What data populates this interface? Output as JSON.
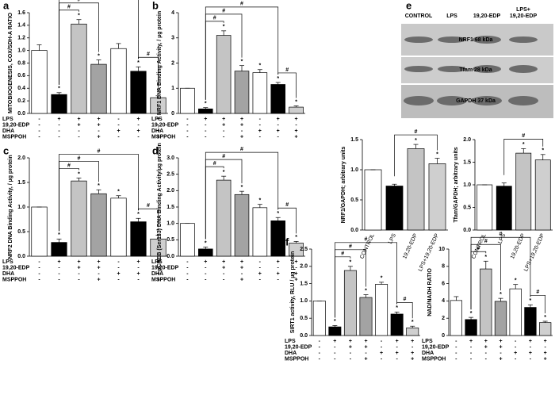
{
  "chart_data": [
    {
      "type": "bar",
      "panel": "a",
      "y_label": "MITOBIOGENESIS, COX/SDH-A RATIO",
      "values": [
        1.0,
        0.3,
        1.42,
        0.78,
        1.03,
        0.67,
        0.25
      ],
      "errors": [
        0.09,
        0.03,
        0.07,
        0.07,
        0.08,
        0.07,
        0.03
      ],
      "colors": [
        "#ffffff",
        "#000000",
        "#c4c4c4",
        "#a3a3a3",
        "#ffffff",
        "#000000",
        "#cfcfcf"
      ],
      "stars": [
        null,
        "*",
        "*",
        "*",
        null,
        "*",
        "*"
      ],
      "brackets": [
        {
          "from": 1,
          "to": 2,
          "text": "#"
        },
        {
          "from": 1,
          "to": 3,
          "text": "#"
        },
        {
          "from": 1,
          "to": 5,
          "text": "#"
        },
        {
          "from": 5,
          "to": 6,
          "text": "#"
        }
      ],
      "ylim": [
        0,
        1.6
      ],
      "yticks": [
        {
          "value": 0,
          "label": "0.0"
        },
        {
          "value": 0.2,
          "label": "0.2"
        },
        {
          "value": 0.4,
          "label": "0.4"
        },
        {
          "value": 0.6,
          "label": "0.6"
        },
        {
          "value": 0.8,
          "label": "0.8"
        },
        {
          "value": 1,
          "label": "1.0"
        },
        {
          "value": 1.2,
          "label": "1.2"
        },
        {
          "value": 1.4,
          "label": "1.4"
        },
        {
          "value": 1.6,
          "label": "1.6"
        }
      ],
      "treatments": [
        {
          "name": "LPS",
          "signs": [
            "-",
            "+",
            "+",
            "+",
            "-",
            "+",
            "+"
          ]
        },
        {
          "name": "19,20-EDP",
          "signs": [
            "-",
            "-",
            "+",
            "+",
            "-",
            "-",
            "-"
          ]
        },
        {
          "name": "DHA",
          "signs": [
            "-",
            "-",
            "-",
            "-",
            "+",
            "+",
            "+"
          ]
        },
        {
          "name": "MSPPOH",
          "signs": [
            "-",
            "-",
            "-",
            "+",
            "-",
            "-",
            "+"
          ]
        }
      ]
    },
    {
      "type": "bar",
      "panel": "b",
      "y_label": "NRF1 DNA Binding Activity, / µg protein",
      "values": [
        1.0,
        0.18,
        3.1,
        1.68,
        1.62,
        1.15,
        0.25
      ],
      "errors": [
        0,
        0.05,
        0.18,
        0.22,
        0.12,
        0.08,
        0.05
      ],
      "colors": [
        "#ffffff",
        "#000000",
        "#c4c4c4",
        "#a3a3a3",
        "#ffffff",
        "#000000",
        "#cfcfcf"
      ],
      "stars": [
        null,
        "*",
        "*",
        "*",
        "*",
        "*",
        "*"
      ],
      "brackets": [
        {
          "from": 1,
          "to": 2,
          "text": "#"
        },
        {
          "from": 1,
          "to": 3,
          "text": "#"
        },
        {
          "from": 1,
          "to": 5,
          "text": "#"
        },
        {
          "from": 5,
          "to": 6,
          "text": "#"
        }
      ],
      "ylim": [
        0,
        4
      ],
      "yticks": [
        0,
        1,
        2,
        3,
        4
      ],
      "treatments": [
        {
          "name": "LPS",
          "signs": [
            "-",
            "+",
            "+",
            "+",
            "-",
            "+",
            "+"
          ]
        },
        {
          "name": "19,20-EDP",
          "signs": [
            "-",
            "-",
            "+",
            "+",
            "-",
            "-",
            "-"
          ]
        },
        {
          "name": "DHA",
          "signs": [
            "-",
            "-",
            "-",
            "-",
            "+",
            "+",
            "+"
          ]
        },
        {
          "name": "MSPPOH",
          "signs": [
            "-",
            "-",
            "-",
            "+",
            "-",
            "-",
            "+"
          ]
        }
      ]
    },
    {
      "type": "bar",
      "panel": "c",
      "y_label": "NRF2 DNA Binding Activity, / µg protein",
      "values": [
        1.0,
        0.28,
        1.53,
        1.27,
        1.18,
        0.7,
        0.35
      ],
      "errors": [
        0,
        0.07,
        0.06,
        0.08,
        0.05,
        0.07,
        0.08
      ],
      "colors": [
        "#ffffff",
        "#000000",
        "#c4c4c4",
        "#a3a3a3",
        "#ffffff",
        "#000000",
        "#cfcfcf"
      ],
      "stars": [
        null,
        "*",
        "*",
        "*",
        "*",
        "*",
        "*"
      ],
      "brackets": [
        {
          "from": 1,
          "to": 2,
          "text": "#"
        },
        {
          "from": 1,
          "to": 3,
          "text": "#"
        },
        {
          "from": 1,
          "to": 5,
          "text": "#"
        },
        {
          "from": 5,
          "to": 6,
          "text": "#"
        }
      ],
      "ylim": [
        0,
        2
      ],
      "yticks": [
        {
          "value": 0,
          "label": "0.0"
        },
        {
          "value": 0.5,
          "label": "0.5"
        },
        {
          "value": 1,
          "label": "1.0"
        },
        {
          "value": 1.5,
          "label": "1.5"
        },
        {
          "value": 2,
          "label": "2.0"
        }
      ],
      "treatments": [
        {
          "name": "LPS",
          "signs": [
            "-",
            "+",
            "+",
            "+",
            "-",
            "+",
            "+"
          ]
        },
        {
          "name": "19,20-EDP",
          "signs": [
            "-",
            "-",
            "+",
            "+",
            "-",
            "-",
            "-"
          ]
        },
        {
          "name": "DHA",
          "signs": [
            "-",
            "-",
            "-",
            "-",
            "+",
            "+",
            "+"
          ]
        },
        {
          "name": "MSPPOH",
          "signs": [
            "-",
            "-",
            "-",
            "+",
            "-",
            "-",
            "+"
          ]
        }
      ]
    },
    {
      "type": "bar",
      "panel": "d",
      "y_label": "pCREB (Ser133) DNA Binding Activity/µg protein",
      "values": [
        1.0,
        0.22,
        2.32,
        1.88,
        1.48,
        1.08,
        0.4
      ],
      "errors": [
        0,
        0.06,
        0.12,
        0.1,
        0.1,
        0.1,
        0.05
      ],
      "colors": [
        "#ffffff",
        "#000000",
        "#c4c4c4",
        "#a3a3a3",
        "#ffffff",
        "#000000",
        "#cfcfcf"
      ],
      "stars": [
        null,
        "*",
        "*",
        "*",
        "*",
        "*",
        "*"
      ],
      "brackets": [
        {
          "from": 1,
          "to": 2,
          "text": "#"
        },
        {
          "from": 1,
          "to": 3,
          "text": "#"
        },
        {
          "from": 1,
          "to": 5,
          "text": "#"
        },
        {
          "from": 5,
          "to": 6,
          "text": "#"
        }
      ],
      "ylim": [
        0,
        3
      ],
      "yticks": [
        {
          "value": 0,
          "label": "0.0"
        },
        {
          "value": 0.5,
          "label": "0.5"
        },
        {
          "value": 1,
          "label": "1.0"
        },
        {
          "value": 1.5,
          "label": "1.5"
        },
        {
          "value": 2,
          "label": "2.0"
        },
        {
          "value": 2.5,
          "label": "2.5"
        },
        {
          "value": 3,
          "label": "3.0"
        }
      ],
      "treatments": [
        {
          "name": "LPS",
          "signs": [
            "-",
            "+",
            "+",
            "+",
            "-",
            "+",
            "+"
          ]
        },
        {
          "name": "19,20-EDP",
          "signs": [
            "-",
            "-",
            "+",
            "+",
            "-",
            "-",
            "-"
          ]
        },
        {
          "name": "DHA",
          "signs": [
            "-",
            "-",
            "-",
            "-",
            "+",
            "+",
            "+"
          ]
        },
        {
          "name": "MSPPOH",
          "signs": [
            "-",
            "-",
            "-",
            "+",
            "-",
            "-",
            "+"
          ]
        }
      ]
    },
    {
      "type": "bar",
      "y_label": "NRF1/GAPDH; arbitrary units",
      "categories": [
        "CONTROL",
        "LPS",
        "19,20-EDP",
        "LPS+19,20-EDP"
      ],
      "values": [
        1.0,
        0.73,
        1.35,
        1.1
      ],
      "errors": [
        0,
        0.03,
        0.07,
        0.09
      ],
      "colors": [
        "#ffffff",
        "#000000",
        "#c4c4c4",
        "#cfcfcf"
      ],
      "stars": [
        null,
        null,
        "*",
        "*"
      ],
      "brackets": [
        {
          "from": 1,
          "to": 3,
          "text": "#"
        }
      ],
      "ylim": [
        0,
        1.5
      ],
      "yticks": [
        {
          "value": 0,
          "label": "0.0"
        },
        {
          "value": 0.5,
          "label": "0.5"
        },
        {
          "value": 1,
          "label": "1.0"
        },
        {
          "value": 1.5,
          "label": "1.5"
        }
      ]
    },
    {
      "type": "bar",
      "y_label": "Tfam/GAPDH; arbitrary units",
      "categories": [
        "CONTROL",
        "LPS",
        "19,20-EDP",
        "LPS+19,20-EDP"
      ],
      "values": [
        1.0,
        0.97,
        1.7,
        1.55
      ],
      "errors": [
        0,
        0.07,
        0.1,
        0.12
      ],
      "colors": [
        "#ffffff",
        "#000000",
        "#c4c4c4",
        "#cfcfcf"
      ],
      "stars": [
        null,
        null,
        "*",
        "*"
      ],
      "brackets": [
        {
          "from": 1,
          "to": 3,
          "text": "#"
        }
      ],
      "ylim": [
        0,
        2
      ],
      "yticks": [
        {
          "value": 0,
          "label": "0.0"
        },
        {
          "value": 0.5,
          "label": "0.5"
        },
        {
          "value": 1,
          "label": "1.0"
        },
        {
          "value": 1.5,
          "label": "1.5"
        },
        {
          "value": 2,
          "label": "2.0"
        }
      ]
    },
    {
      "type": "bar",
      "panel": "f",
      "y_label": "SIRT1 activity, RLU / µg protein",
      "values": [
        1.0,
        0.25,
        1.88,
        1.1,
        1.48,
        0.62,
        0.22
      ],
      "errors": [
        0,
        0.04,
        0.12,
        0.08,
        0.06,
        0.06,
        0.05
      ],
      "colors": [
        "#ffffff",
        "#000000",
        "#c4c4c4",
        "#a3a3a3",
        "#ffffff",
        "#000000",
        "#cfcfcf"
      ],
      "stars": [
        null,
        "*",
        "*",
        "*",
        "*",
        "*",
        "*"
      ],
      "brackets": [
        {
          "from": 1,
          "to": 2,
          "text": "#"
        },
        {
          "from": 1,
          "to": 3,
          "text": "#"
        },
        {
          "from": 1,
          "to": 5,
          "text": "#"
        },
        {
          "from": 5,
          "to": 6,
          "text": "#"
        }
      ],
      "ylim": [
        0,
        2.5
      ],
      "yticks": [
        {
          "value": 0,
          "label": "0.0"
        },
        {
          "value": 0.5,
          "label": "0.5"
        },
        {
          "value": 1,
          "label": "1.0"
        },
        {
          "value": 1.5,
          "label": "1.5"
        },
        {
          "value": 2,
          "label": "2.0"
        },
        {
          "value": 2.5,
          "label": "2.5"
        }
      ],
      "treatments": [
        {
          "name": "LPS",
          "signs": [
            "-",
            "+",
            "+",
            "+",
            "-",
            "+",
            "+"
          ]
        },
        {
          "name": "19,20-EDP",
          "signs": [
            "-",
            "-",
            "+",
            "+",
            "-",
            "-",
            "-"
          ]
        },
        {
          "name": "DHA",
          "signs": [
            "-",
            "-",
            "-",
            "-",
            "+",
            "+",
            "+"
          ]
        },
        {
          "name": "MSPPOH",
          "signs": [
            "-",
            "-",
            "-",
            "+",
            "-",
            "-",
            "+"
          ]
        }
      ]
    },
    {
      "type": "bar",
      "y_label": "NAD/NADH RATIO",
      "values": [
        4.05,
        1.85,
        7.7,
        3.95,
        5.4,
        3.25,
        1.5
      ],
      "errors": [
        0.45,
        0.25,
        0.9,
        0.35,
        0.5,
        0.3,
        0.15
      ],
      "colors": [
        "#ffffff",
        "#000000",
        "#c4c4c4",
        "#a3a3a3",
        "#ffffff",
        "#000000",
        "#cfcfcf"
      ],
      "stars": [
        null,
        "*",
        "*",
        "*",
        "*",
        "*",
        "*"
      ],
      "brackets": [
        {
          "from": 1,
          "to": 2,
          "text": "#"
        },
        {
          "from": 1,
          "to": 3,
          "text": "#"
        },
        {
          "from": 1,
          "to": 5,
          "text": "#"
        },
        {
          "from": 5,
          "to": 6,
          "text": "#"
        }
      ],
      "ylim": [
        0,
        10
      ],
      "yticks": [
        0,
        2,
        4,
        6,
        8,
        10
      ],
      "treatments": [
        {
          "name": "LPS",
          "signs": [
            "-",
            "+",
            "+",
            "+",
            "-",
            "+",
            "+"
          ]
        },
        {
          "name": "19,20-EDP",
          "signs": [
            "-",
            "-",
            "+",
            "+",
            "-",
            "-",
            "-"
          ]
        },
        {
          "name": "DHA",
          "signs": [
            "-",
            "-",
            "-",
            "-",
            "+",
            "+",
            "+"
          ]
        },
        {
          "name": "MSPPOH",
          "signs": [
            "-",
            "-",
            "-",
            "+",
            "-",
            "-",
            "+"
          ]
        }
      ]
    }
  ],
  "blot": {
    "panel": "e",
    "lanes": [
      [
        "CONTROL"
      ],
      [
        "LPS"
      ],
      [
        "19,20-EDP"
      ],
      [
        "LPS+",
        "19,20-EDP"
      ]
    ],
    "bands": [
      "NRF1 68 kDa",
      "Tfam 28 kDa",
      "GAPDH 37 kDa"
    ]
  }
}
